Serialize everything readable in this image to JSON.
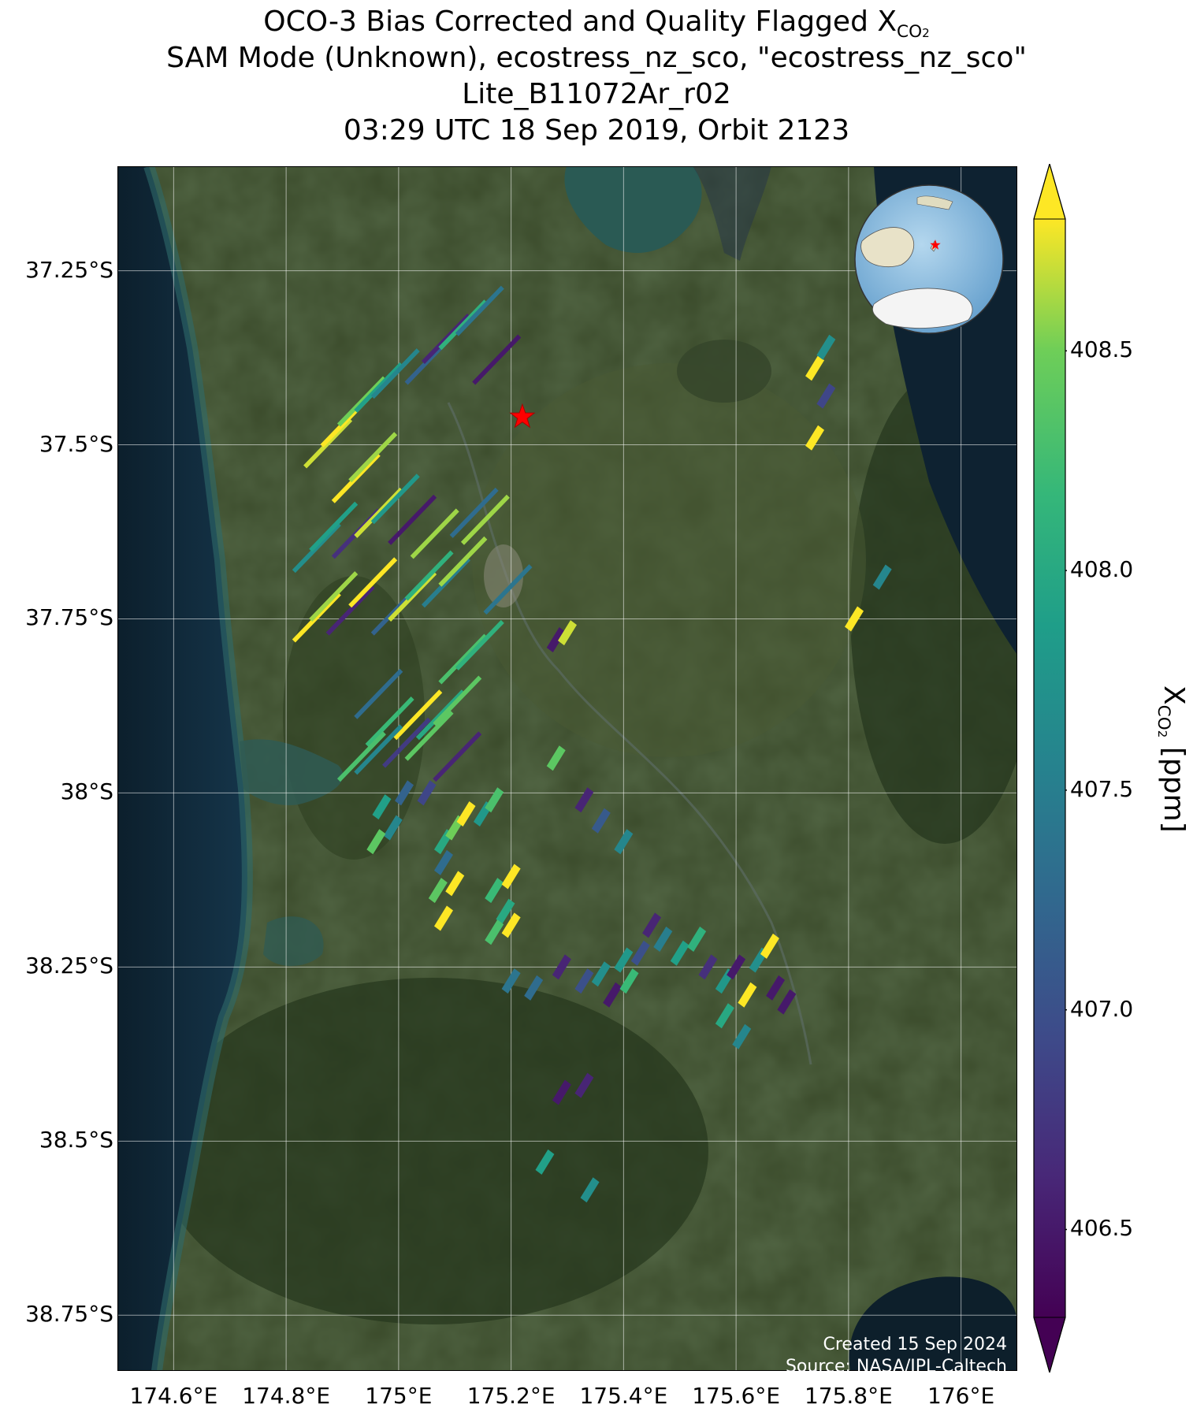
{
  "title": {
    "line1_prefix": "OCO-3 Bias Corrected and Quality Flagged X",
    "line1_sub": "CO",
    "line1_subsub": "2",
    "line2": "SAM Mode (Unknown), ecostress_nz_sco, \"ecostress_nz_sco\"",
    "line3": "Lite_B11072Ar_r02",
    "line4": "03:29 UTC 18 Sep 2019, Orbit 2123"
  },
  "map": {
    "lon_range": [
      174.5,
      176.1
    ],
    "lat_range": [
      -38.83,
      -37.1
    ],
    "y_ticks": [
      "37.25°S",
      "37.5°S",
      "37.75°S",
      "38°S",
      "38.25°S",
      "38.5°S",
      "38.75°S"
    ],
    "y_tick_values": [
      -37.25,
      -37.5,
      -37.75,
      -38.0,
      -38.25,
      -38.5,
      -38.75
    ],
    "x_ticks": [
      "174.6°E",
      "174.8°E",
      "175°E",
      "175.2°E",
      "175.4°E",
      "175.6°E",
      "175.8°E",
      "176°E"
    ],
    "x_tick_values": [
      174.6,
      174.8,
      175.0,
      175.2,
      175.4,
      175.6,
      175.8,
      176.0
    ],
    "target_marker": {
      "lon": 175.22,
      "lat": -37.46,
      "color": "#ff0000"
    },
    "background": "satellite imagery",
    "grid": true
  },
  "chart_data": {
    "type": "scatter",
    "colormap": "viridis",
    "clim": [
      406.3,
      408.8
    ],
    "extend": "both",
    "points": [
      {
        "lon": 174.87,
        "lat": -37.5,
        "v": 408.7
      },
      {
        "lon": 174.9,
        "lat": -37.47,
        "v": 408.8
      },
      {
        "lon": 174.93,
        "lat": -37.44,
        "v": 408.5
      },
      {
        "lon": 174.96,
        "lat": -37.42,
        "v": 407.9
      },
      {
        "lon": 174.99,
        "lat": -37.4,
        "v": 407.6
      },
      {
        "lon": 175.05,
        "lat": -37.38,
        "v": 407.2
      },
      {
        "lon": 175.08,
        "lat": -37.35,
        "v": 406.6
      },
      {
        "lon": 175.11,
        "lat": -37.33,
        "v": 408.1
      },
      {
        "lon": 175.14,
        "lat": -37.31,
        "v": 407.4
      },
      {
        "lon": 175.17,
        "lat": -37.38,
        "v": 406.5
      },
      {
        "lon": 174.92,
        "lat": -37.55,
        "v": 408.8
      },
      {
        "lon": 174.95,
        "lat": -37.52,
        "v": 408.6
      },
      {
        "lon": 174.85,
        "lat": -37.65,
        "v": 407.7
      },
      {
        "lon": 174.88,
        "lat": -37.62,
        "v": 407.9
      },
      {
        "lon": 174.92,
        "lat": -37.63,
        "v": 406.7
      },
      {
        "lon": 174.96,
        "lat": -37.6,
        "v": 408.7
      },
      {
        "lon": 174.99,
        "lat": -37.58,
        "v": 407.8
      },
      {
        "lon": 175.02,
        "lat": -37.61,
        "v": 406.5
      },
      {
        "lon": 175.06,
        "lat": -37.63,
        "v": 408.6
      },
      {
        "lon": 175.13,
        "lat": -37.6,
        "v": 407.3
      },
      {
        "lon": 175.15,
        "lat": -37.61,
        "v": 408.6
      },
      {
        "lon": 174.85,
        "lat": -37.75,
        "v": 408.8
      },
      {
        "lon": 174.88,
        "lat": -37.72,
        "v": 408.6
      },
      {
        "lon": 174.91,
        "lat": -37.74,
        "v": 406.6
      },
      {
        "lon": 174.95,
        "lat": -37.7,
        "v": 408.8
      },
      {
        "lon": 174.99,
        "lat": -37.74,
        "v": 407.2
      },
      {
        "lon": 175.02,
        "lat": -37.72,
        "v": 408.7
      },
      {
        "lon": 175.05,
        "lat": -37.69,
        "v": 408.1
      },
      {
        "lon": 175.08,
        "lat": -37.7,
        "v": 407.5
      },
      {
        "lon": 175.11,
        "lat": -37.67,
        "v": 408.6
      },
      {
        "lon": 175.19,
        "lat": -37.71,
        "v": 407.4
      },
      {
        "lon": 175.28,
        "lat": -37.78,
        "v": 406.5
      },
      {
        "lon": 175.3,
        "lat": -37.77,
        "v": 408.7
      },
      {
        "lon": 175.11,
        "lat": -37.81,
        "v": 408.3
      },
      {
        "lon": 175.14,
        "lat": -37.79,
        "v": 408.1
      },
      {
        "lon": 174.96,
        "lat": -37.86,
        "v": 407.3
      },
      {
        "lon": 174.98,
        "lat": -37.9,
        "v": 408.2
      },
      {
        "lon": 175.01,
        "lat": -37.93,
        "v": 406.8
      },
      {
        "lon": 175.03,
        "lat": -37.89,
        "v": 408.8
      },
      {
        "lon": 175.05,
        "lat": -37.92,
        "v": 408.4
      },
      {
        "lon": 175.07,
        "lat": -37.89,
        "v": 408.0
      },
      {
        "lon": 175.1,
        "lat": -37.87,
        "v": 408.4
      },
      {
        "lon": 174.93,
        "lat": -37.95,
        "v": 408.3
      },
      {
        "lon": 174.96,
        "lat": -37.94,
        "v": 407.6
      },
      {
        "lon": 175.1,
        "lat": -37.95,
        "v": 406.6
      },
      {
        "lon": 174.97,
        "lat": -38.02,
        "v": 407.9
      },
      {
        "lon": 174.99,
        "lat": -38.05,
        "v": 407.6
      },
      {
        "lon": 175.01,
        "lat": -38.0,
        "v": 407.2
      },
      {
        "lon": 175.05,
        "lat": -38.0,
        "v": 406.9
      },
      {
        "lon": 174.96,
        "lat": -38.07,
        "v": 408.4
      },
      {
        "lon": 175.08,
        "lat": -38.07,
        "v": 408.0
      },
      {
        "lon": 175.1,
        "lat": -38.05,
        "v": 408.5
      },
      {
        "lon": 175.12,
        "lat": -38.03,
        "v": 408.8
      },
      {
        "lon": 175.08,
        "lat": -38.1,
        "v": 407.3
      },
      {
        "lon": 175.1,
        "lat": -38.13,
        "v": 408.8
      },
      {
        "lon": 175.07,
        "lat": -38.14,
        "v": 408.4
      },
      {
        "lon": 175.08,
        "lat": -38.18,
        "v": 408.8
      },
      {
        "lon": 175.15,
        "lat": -38.03,
        "v": 407.8
      },
      {
        "lon": 175.17,
        "lat": -38.01,
        "v": 408.3
      },
      {
        "lon": 175.17,
        "lat": -38.14,
        "v": 408.2
      },
      {
        "lon": 175.2,
        "lat": -38.12,
        "v": 408.8
      },
      {
        "lon": 175.19,
        "lat": -38.17,
        "v": 408.0
      },
      {
        "lon": 175.17,
        "lat": -38.2,
        "v": 408.3
      },
      {
        "lon": 175.2,
        "lat": -38.19,
        "v": 408.8
      },
      {
        "lon": 175.2,
        "lat": -38.27,
        "v": 407.4
      },
      {
        "lon": 175.24,
        "lat": -38.28,
        "v": 407.3
      },
      {
        "lon": 175.29,
        "lat": -38.25,
        "v": 406.6
      },
      {
        "lon": 175.33,
        "lat": -38.27,
        "v": 407.0
      },
      {
        "lon": 175.36,
        "lat": -38.26,
        "v": 407.7
      },
      {
        "lon": 175.38,
        "lat": -38.29,
        "v": 406.5
      },
      {
        "lon": 175.41,
        "lat": -38.27,
        "v": 408.2
      },
      {
        "lon": 175.4,
        "lat": -38.24,
        "v": 407.8
      },
      {
        "lon": 175.43,
        "lat": -38.23,
        "v": 407.0
      },
      {
        "lon": 175.45,
        "lat": -38.19,
        "v": 406.6
      },
      {
        "lon": 175.47,
        "lat": -38.21,
        "v": 407.5
      },
      {
        "lon": 175.5,
        "lat": -38.23,
        "v": 407.9
      },
      {
        "lon": 175.53,
        "lat": -38.21,
        "v": 408.1
      },
      {
        "lon": 175.55,
        "lat": -38.25,
        "v": 406.7
      },
      {
        "lon": 175.58,
        "lat": -38.27,
        "v": 407.8
      },
      {
        "lon": 175.6,
        "lat": -38.25,
        "v": 406.5
      },
      {
        "lon": 175.62,
        "lat": -38.29,
        "v": 408.8
      },
      {
        "lon": 175.64,
        "lat": -38.24,
        "v": 407.7
      },
      {
        "lon": 175.67,
        "lat": -38.28,
        "v": 406.5
      },
      {
        "lon": 175.69,
        "lat": -38.3,
        "v": 406.5
      },
      {
        "lon": 175.66,
        "lat": -38.22,
        "v": 408.8
      },
      {
        "lon": 175.58,
        "lat": -38.32,
        "v": 408.0
      },
      {
        "lon": 175.61,
        "lat": -38.35,
        "v": 407.6
      },
      {
        "lon": 175.28,
        "lat": -37.95,
        "v": 408.4
      },
      {
        "lon": 175.33,
        "lat": -38.01,
        "v": 406.6
      },
      {
        "lon": 175.36,
        "lat": -38.04,
        "v": 407.1
      },
      {
        "lon": 175.4,
        "lat": -38.07,
        "v": 407.6
      },
      {
        "lon": 175.29,
        "lat": -38.43,
        "v": 406.5
      },
      {
        "lon": 175.33,
        "lat": -38.42,
        "v": 406.6
      },
      {
        "lon": 175.26,
        "lat": -38.53,
        "v": 407.9
      },
      {
        "lon": 175.34,
        "lat": -38.57,
        "v": 407.7
      },
      {
        "lon": 175.74,
        "lat": -37.39,
        "v": 408.8
      },
      {
        "lon": 175.76,
        "lat": -37.36,
        "v": 407.7
      },
      {
        "lon": 175.76,
        "lat": -37.43,
        "v": 406.9
      },
      {
        "lon": 175.74,
        "lat": -37.49,
        "v": 408.8
      },
      {
        "lon": 175.86,
        "lat": -37.69,
        "v": 407.6
      },
      {
        "lon": 175.81,
        "lat": -37.75,
        "v": 408.8
      }
    ]
  },
  "colorbar": {
    "ticks": [
      "408.5",
      "408.0",
      "407.5",
      "407.0",
      "406.5"
    ],
    "tick_values": [
      408.5,
      408.0,
      407.5,
      407.0,
      406.5
    ],
    "label_prefix": "X",
    "label_sub": "CO",
    "label_subsub": "2",
    "label_suffix": " [ppm]"
  },
  "credits": {
    "created": "Created 15 Sep 2024",
    "source": "Source: NASA/JPL-Caltech"
  }
}
